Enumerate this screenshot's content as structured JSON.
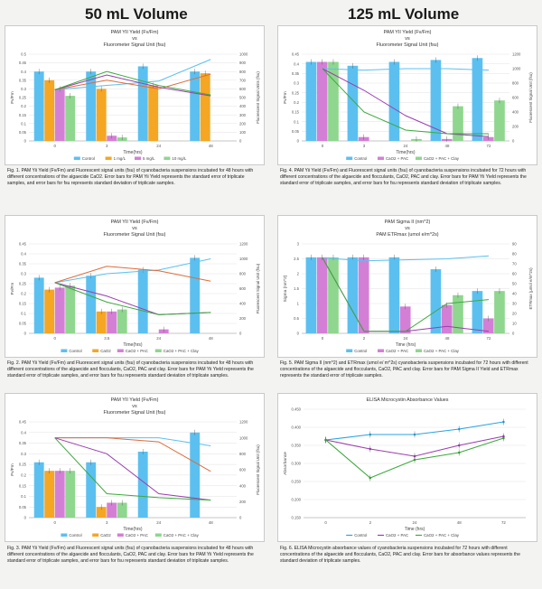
{
  "headers": {
    "left": "50 mL Volume",
    "right": "125 mL Volume"
  },
  "colors": {
    "blue": "#5bc0f0",
    "orange": "#f5a623",
    "pink": "#d47fd6",
    "green": "#8fd68f",
    "dkgreen": "#7fbf4f",
    "red": "#e06b3a",
    "purple": "#9b3db0",
    "lineGreen": "#3caa3c"
  },
  "panels": [
    {
      "id": "fig1",
      "caption": "Fig. 1. PAM Yii Yield (Fv/Fm) and Fluorescent signal units (fsu) of cyanobacteria suspensions incubated for 48 hours with different concentrations of the algaecide CaO2. Error bars for PAM Yii Yield represents the standard error of triplicate samples, and error bars for fsu represents standard deviation of triplicate samples.",
      "chart_data": {
        "type": "bar",
        "title": [
          "PAM YII Yield (Fv/Fm)",
          "vs",
          "Fluorometer Signal Unit (fsu)"
        ],
        "xlabel": "Time(hrs)",
        "ylabel": "Fv/Fm",
        "y2label": "Fluorescent Signal Units (fsu)",
        "categories": [
          "0",
          "3",
          "24",
          "48"
        ],
        "ylim": [
          0,
          0.5
        ],
        "yticks": [
          "0",
          "0.05",
          "0.1",
          "0.15",
          "0.2",
          "0.25",
          "0.3",
          "0.35",
          "0.4",
          "0.45",
          "0.5"
        ],
        "y2lim": [
          0,
          1000
        ],
        "y2ticks": [
          "0",
          "100",
          "200",
          "300",
          "400",
          "500",
          "600",
          "700",
          "800",
          "900",
          "1000"
        ],
        "series": [
          {
            "name": "Control",
            "color": "#5bc0f0",
            "values": [
              0.4,
              0.4,
              0.43,
              0.4
            ]
          },
          {
            "name": "1 mg/L",
            "color": "#f5a623",
            "values": [
              0.35,
              0.3,
              0.32,
              0.39
            ]
          },
          {
            "name": "5 mg/L",
            "color": "#d47fd6",
            "values": [
              0.3,
              0.03,
              null,
              null
            ]
          },
          {
            "name": "10 mg/L",
            "color": "#8fd68f",
            "values": [
              0.26,
              0.02,
              null,
              null
            ]
          }
        ],
        "lines": [
          {
            "color": "#5bc0f0",
            "values": [
              590,
              640,
              690,
              940
            ]
          },
          {
            "color": "#e06b3a",
            "values": [
              590,
              700,
              600,
              770
            ]
          },
          {
            "color": "#9b3db0",
            "values": [
              590,
              760,
              620,
              520
            ]
          },
          {
            "color": "#3caa3c",
            "values": [
              590,
              800,
              640,
              530
            ]
          }
        ],
        "legend": "bottom"
      }
    },
    {
      "id": "fig4",
      "caption": "Fig. 4. PAM Yii Yield (Fv/Fm) and Fluorescent signal units (fsu) of cyanobacteria suspensions incubated for 72 hours with different concentrations of the algaecide and flocculants, CaO2, PAC and clay. Error bars for PAM Yii Yield represents the standard error of triplicate samples, and error bars for fsu represents standard deviation of triplicate samples.",
      "chart_data": {
        "type": "bar",
        "title": [
          "PAM YII Yield (Fv/Fm)",
          "vs",
          "Fluorometer Signal Unit (fsu)"
        ],
        "xlabel": "Time(hrs)",
        "ylabel": "Fv/Fm",
        "y2label": "Fluorescent Signal Unit (fsu)",
        "categories": [
          "0",
          "3",
          "24",
          "48",
          "72"
        ],
        "ylim": [
          0,
          0.45
        ],
        "yticks": [
          "0",
          "0.05",
          "0.1",
          "0.15",
          "0.2",
          "0.25",
          "0.3",
          "0.35",
          "0.4",
          "0.45"
        ],
        "y2lim": [
          0,
          1200
        ],
        "y2ticks": [
          "0",
          "200",
          "400",
          "600",
          "800",
          "1000",
          "1200"
        ],
        "series": [
          {
            "name": "Control",
            "color": "#5bc0f0",
            "values": [
              0.41,
              0.39,
              0.41,
              0.42,
              0.43
            ]
          },
          {
            "name": "CaO2 + PAC",
            "color": "#d47fd6",
            "values": [
              0.41,
              0.02,
              null,
              0.01,
              0.02
            ]
          },
          {
            "name": "CaO2 + PAC + Clay",
            "color": "#8fd68f",
            "values": [
              0.41,
              null,
              0.01,
              0.18,
              0.21
            ]
          }
        ],
        "lines": [
          {
            "color": "#5bc0f0",
            "values": [
              1000,
              980,
              1000,
              1000,
              980
            ]
          },
          {
            "color": "#9b3db0",
            "values": [
              1000,
              700,
              350,
              100,
              60
            ]
          },
          {
            "color": "#3caa3c",
            "values": [
              1000,
              400,
              150,
              100,
              100
            ]
          }
        ],
        "legend": "bottom"
      }
    },
    {
      "id": "fig2",
      "caption": "Fig. 2. PAM Yii Yield (Fv/Fm) and Fluorescent signal units (fsu) of cyanobacteria suspensions incubated for 48 hours with different concentrations of the algaecide and flocculants, CaO2, PAC and clay. Error bars for PAM Yii Yield represents the standard error of triplicate samples, and error bars for fsu represents standard deviation of triplicate samples.",
      "chart_data": {
        "type": "bar",
        "title": [
          "PAM YII Yield (Fv/Fm)",
          "vs",
          "Fluorometer Signal Unit (fsu)"
        ],
        "xlabel": "Time(hrs)",
        "ylabel": "Fv/Fm",
        "y2label": "Fluorescent Signal Unit (fsu)",
        "categories": [
          "0",
          "3.5",
          "24",
          "48"
        ],
        "ylim": [
          0,
          0.45
        ],
        "yticks": [
          "0",
          "0.05",
          "0.1",
          "0.15",
          "0.2",
          "0.25",
          "0.3",
          "0.35",
          "0.4",
          "0.45"
        ],
        "y2lim": [
          0,
          1200
        ],
        "y2ticks": [
          "0",
          "200",
          "400",
          "600",
          "800",
          "1000",
          "1200"
        ],
        "series": [
          {
            "name": "Control",
            "color": "#5bc0f0",
            "values": [
              0.28,
              0.29,
              0.32,
              0.38
            ]
          },
          {
            "name": "CaO2",
            "color": "#f5a623",
            "values": [
              0.22,
              0.11,
              null,
              null
            ]
          },
          {
            "name": "CaO2 + PAC",
            "color": "#d47fd6",
            "values": [
              0.23,
              0.11,
              0.02,
              null
            ]
          },
          {
            "name": "CaO2 + PAC + Clay",
            "color": "#8fd68f",
            "values": [
              0.24,
              0.12,
              null,
              null
            ]
          }
        ],
        "lines": [
          {
            "color": "#5bc0f0",
            "values": [
              680,
              800,
              850,
              1000
            ]
          },
          {
            "color": "#e06b3a",
            "values": [
              680,
              900,
              840,
              700
            ]
          },
          {
            "color": "#9b3db0",
            "values": [
              680,
              500,
              250,
              280
            ]
          },
          {
            "color": "#3caa3c",
            "values": [
              680,
              420,
              250,
              280
            ]
          }
        ],
        "legend": "bottom"
      }
    },
    {
      "id": "fig5",
      "caption": "Fig. 5. PAM Sigma II (nm^2) and ETRmax (umol e/ m^2s) cyanobacteria suspensions incubated for 72 hours with different concentrations of the algaecide and flocculants, CaO2, PAC and clay. Error bars for PAM Sigma II Yield and ETRmax represents the standard error of triplicate samples.",
      "chart_data": {
        "type": "bar",
        "title": [
          "PAM Sigma II (nm^2)",
          "vs",
          "PAM ETRmax (umol e/m^2s)"
        ],
        "xlabel": "Time (hrs)",
        "ylabel": "Sigma (nm^2)",
        "y2label": "ETRmax (µmol e/m^2s)",
        "categories": [
          "0",
          "2",
          "24",
          "48",
          "72"
        ],
        "ylim": [
          0,
          3
        ],
        "yticks": [
          "0",
          "0.5",
          "1",
          "1.5",
          "2",
          "2.5",
          "3"
        ],
        "y2lim": [
          0,
          90
        ],
        "y2ticks": [
          "0",
          "10",
          "20",
          "30",
          "40",
          "50",
          "60",
          "70",
          "80",
          "90"
        ],
        "series": [
          {
            "name": "Control",
            "color": "#5bc0f0",
            "values": [
              2.55,
              2.55,
              2.55,
              2.15,
              1.42
            ]
          },
          {
            "name": "CaO2 + PAC",
            "color": "#d47fd6",
            "values": [
              2.55,
              2.55,
              0.9,
              0.95,
              0.5
            ]
          },
          {
            "name": "CaO2 + PAC + Clay",
            "color": "#8fd68f",
            "values": [
              2.55,
              null,
              null,
              1.28,
              1.42
            ]
          }
        ],
        "lines": [
          {
            "color": "#5bc0f0",
            "values": [
              76,
              73,
              74,
              75,
              78
            ]
          },
          {
            "color": "#9b3db0",
            "values": [
              76,
              2,
              2,
              7,
              2
            ]
          },
          {
            "color": "#3caa3c",
            "values": [
              76,
              2,
              2,
              30,
              34
            ]
          }
        ],
        "legend": "bottom"
      }
    },
    {
      "id": "fig3",
      "caption": "Fig. 3. PAM Yii Yield (Fv/Fm) and Fluorescent signal units (fsu) of cyanobacteria suspensions incubated for 48 hours with different concentrations of the algaecide and flocculants, CaO2, PAC and clay. Error bars for PAM Yii Yield represents the standard error of triplicate samples, and error bars for fsu represents standard deviation of triplicate samples.",
      "chart_data": {
        "type": "bar",
        "title": [
          "PAM YII Yield (Fv/Fm)",
          "vs",
          "Fluorometer Signal Unit (fsu)"
        ],
        "xlabel": "Time(hrs)",
        "ylabel": "Fv/Fm",
        "y2label": "Fluorescent Signal Unit (fsu)",
        "categories": [
          "0",
          "3",
          "24",
          "48"
        ],
        "ylim": [
          0,
          0.45
        ],
        "yticks": [
          "0",
          "0.05",
          "0.1",
          "0.15",
          "0.2",
          "0.25",
          "0.3",
          "0.35",
          "0.4",
          "0.45"
        ],
        "y2lim": [
          0,
          1200
        ],
        "y2ticks": [
          "0",
          "200",
          "400",
          "600",
          "800",
          "1000",
          "1200"
        ],
        "series": [
          {
            "name": "Control",
            "color": "#5bc0f0",
            "values": [
              0.26,
              0.26,
              0.31,
              0.4
            ]
          },
          {
            "name": "CaO2",
            "color": "#f5a623",
            "values": [
              0.22,
              0.05,
              null,
              null
            ]
          },
          {
            "name": "CaO2 + PAC",
            "color": "#d47fd6",
            "values": [
              0.22,
              0.07,
              null,
              null
            ]
          },
          {
            "name": "CaO2 + PAC + Clay",
            "color": "#8fd68f",
            "values": [
              0.22,
              0.07,
              null,
              null
            ]
          }
        ],
        "lines": [
          {
            "color": "#5bc0f0",
            "values": [
              1000,
              1000,
              1000,
              900
            ]
          },
          {
            "color": "#e06b3a",
            "values": [
              1000,
              1000,
              950,
              580
            ]
          },
          {
            "color": "#9b3db0",
            "values": [
              1000,
              800,
              300,
              220
            ]
          },
          {
            "color": "#3caa3c",
            "values": [
              1000,
              300,
              250,
              220
            ]
          }
        ],
        "legend": "bottom"
      }
    },
    {
      "id": "fig6",
      "caption": "Fig. 6. ELISA Microcystin absorbance values of cyanobacteria suspensions incubated for 72 hours with different concentrations of the algaecide and flocculants, CaO2, PAC and clay. Error bars for absorbance values represents the standard deviation of triplicate samples.",
      "chart_data": {
        "type": "line",
        "title": [
          "ELISA Microcystin Absorbance Values"
        ],
        "xlabel": "Time (hrs)",
        "ylabel": "Absorbance",
        "categories": [
          "0",
          "2",
          "24",
          "48",
          "72"
        ],
        "ylim": [
          0.45,
          0.15
        ],
        "reversed": true,
        "yticks": [
          "0.150",
          "0.200",
          "0.250",
          "0.300",
          "0.350",
          "0.400",
          "0.450"
        ],
        "series": [
          {
            "name": "Control",
            "color": "#29a3e0",
            "values": [
              0.235,
              0.22,
              0.22,
              0.205,
              0.185
            ]
          },
          {
            "name": "CaO2 + PAC",
            "color": "#9b3db0",
            "values": [
              0.235,
              0.26,
              0.28,
              0.25,
              0.225
            ]
          },
          {
            "name": "CaO2 + PAC + Clay",
            "color": "#3caa3c",
            "values": [
              0.235,
              0.34,
              0.29,
              0.27,
              0.23
            ]
          }
        ],
        "legend": "bottom"
      }
    }
  ]
}
